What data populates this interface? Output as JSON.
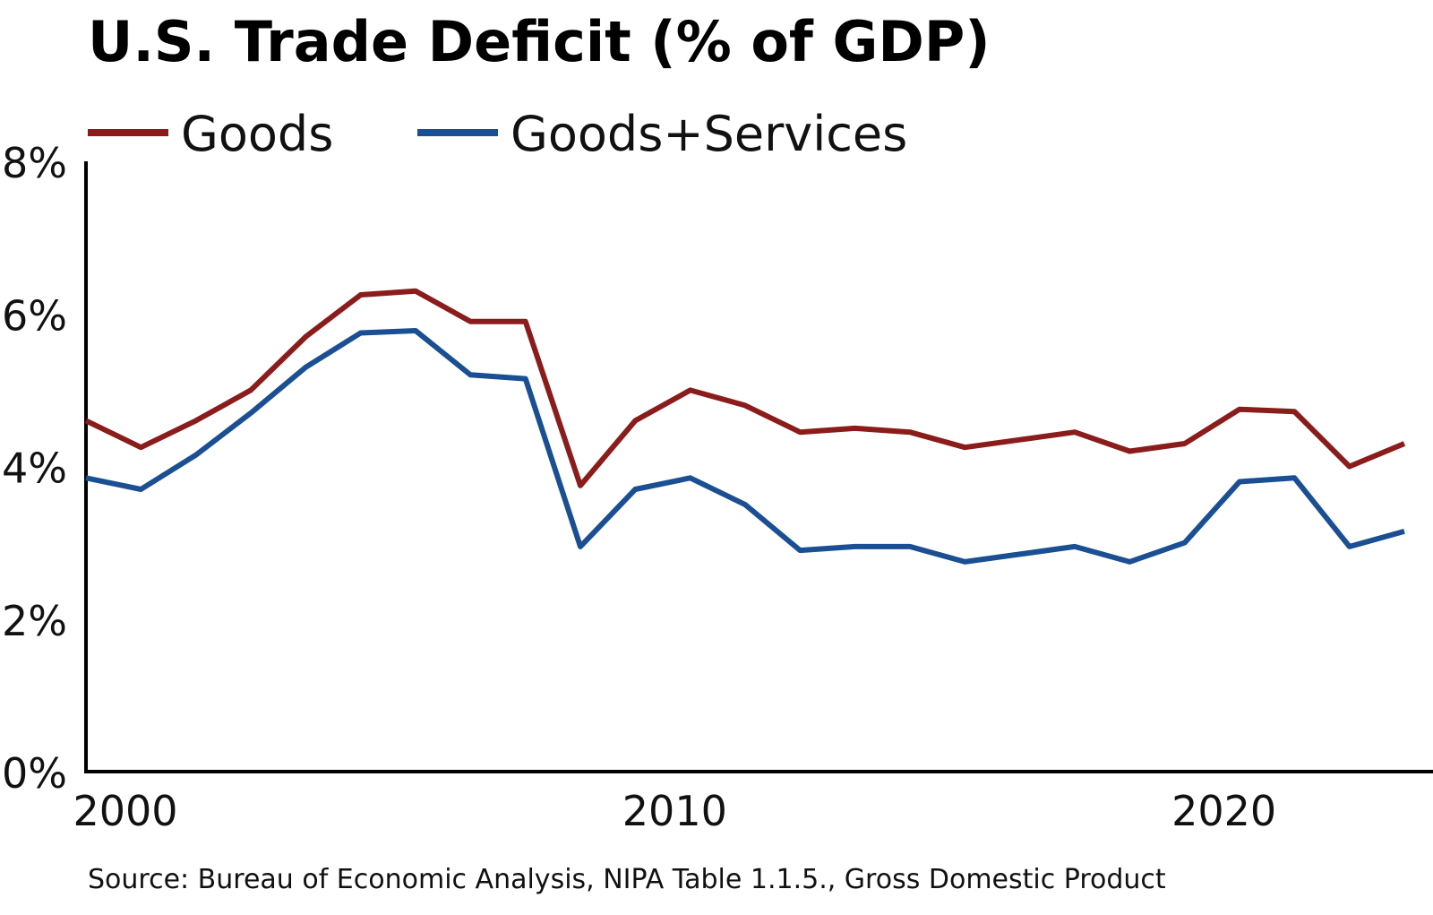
{
  "chart_data": {
    "type": "line",
    "title": "U.S. Trade Deficit (% of GDP)",
    "source": "Source: Bureau of Economic Analysis, NIPA Table 1.1.5., Gross Domestic Product",
    "xlabel": "",
    "ylabel": "",
    "xlim": [
      2000,
      2024
    ],
    "ylim": [
      0,
      8
    ],
    "x_ticks": [
      {
        "value": 2000,
        "label": "2000"
      },
      {
        "value": 2010,
        "label": "2010"
      },
      {
        "value": 2020,
        "label": "2020"
      }
    ],
    "y_ticks": [
      {
        "value": 0,
        "label": "0%"
      },
      {
        "value": 2,
        "label": "2%"
      },
      {
        "value": 4,
        "label": "4%"
      },
      {
        "value": 6,
        "label": "6%"
      },
      {
        "value": 8,
        "label": "8%"
      }
    ],
    "grid": false,
    "legend_position": "top-left",
    "x": [
      2000,
      2001,
      2002,
      2003,
      2004,
      2005,
      2006,
      2007,
      2008,
      2009,
      2010,
      2011,
      2012,
      2013,
      2014,
      2015,
      2016,
      2017,
      2018,
      2019,
      2020,
      2021,
      2022,
      2023,
      2024
    ],
    "series": [
      {
        "name": "Goods",
        "color": "#8b1c1c",
        "values": [
          4.6,
          4.25,
          4.6,
          5.0,
          5.7,
          6.25,
          6.3,
          5.9,
          5.9,
          3.75,
          4.6,
          5.0,
          4.8,
          4.45,
          4.5,
          4.45,
          4.25,
          4.35,
          4.45,
          4.2,
          4.3,
          4.75,
          4.72,
          4.0,
          4.3
        ]
      },
      {
        "name": "Goods+Services",
        "color": "#1b4f93",
        "values": [
          3.85,
          3.7,
          4.15,
          4.7,
          5.3,
          5.75,
          5.78,
          5.2,
          5.15,
          2.95,
          3.7,
          3.85,
          3.5,
          2.9,
          2.95,
          2.95,
          2.75,
          2.85,
          2.95,
          2.75,
          3.0,
          3.8,
          3.85,
          2.95,
          3.15
        ]
      }
    ]
  }
}
